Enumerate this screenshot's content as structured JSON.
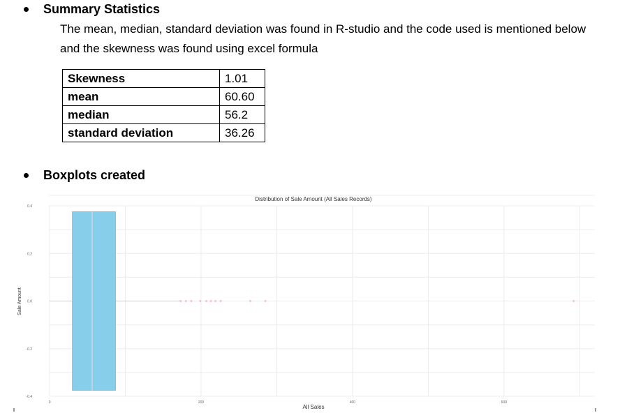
{
  "section1": {
    "heading": "Summary Statistics",
    "line1": "The mean, median, standard deviation was found in R-studio and the code used is mentioned below",
    "line2": "and the skewness was found using excel formula"
  },
  "stats_table": [
    {
      "label": "Skewness",
      "value": "1.01"
    },
    {
      "label": "mean",
      "value": "60.60"
    },
    {
      "label": "median",
      "value": "56.2"
    },
    {
      "label": "standard deviation",
      "value": "36.26"
    }
  ],
  "section2": {
    "heading": "Boxplots created"
  },
  "colors": {
    "box_fill": "#87CEEB",
    "box_stroke": "#9ab8c8",
    "outlier": "#f4b6c2",
    "grid": "#ececec"
  },
  "chart_data": {
    "type": "boxplot",
    "title": "Distribution of Sale Amount (All Sales Records)",
    "xlabel": "All Sales",
    "ylabel": "Sale Amount",
    "xlim": [
      -1,
      720
    ],
    "ylim": [
      -0.4,
      0.4
    ],
    "x_ticks": [
      0,
      200,
      400,
      600
    ],
    "x_tick_labels": [
      "0",
      "200",
      "400",
      "600"
    ],
    "y_ticks": [
      -0.4,
      -0.2,
      0.0,
      0.2,
      0.4
    ],
    "y_tick_labels": [
      "-0.4",
      "-0.2",
      "0.0",
      "0.2",
      "0.4"
    ],
    "box": {
      "q1": 30,
      "median": 56.2,
      "q3": 87,
      "whisker_low": 0,
      "whisker_high": 172,
      "y_low": -0.375,
      "y_high": 0.375
    },
    "outliers": [
      173,
      180,
      187,
      199,
      207,
      213,
      219,
      226,
      265,
      285,
      692
    ],
    "grid": true
  }
}
